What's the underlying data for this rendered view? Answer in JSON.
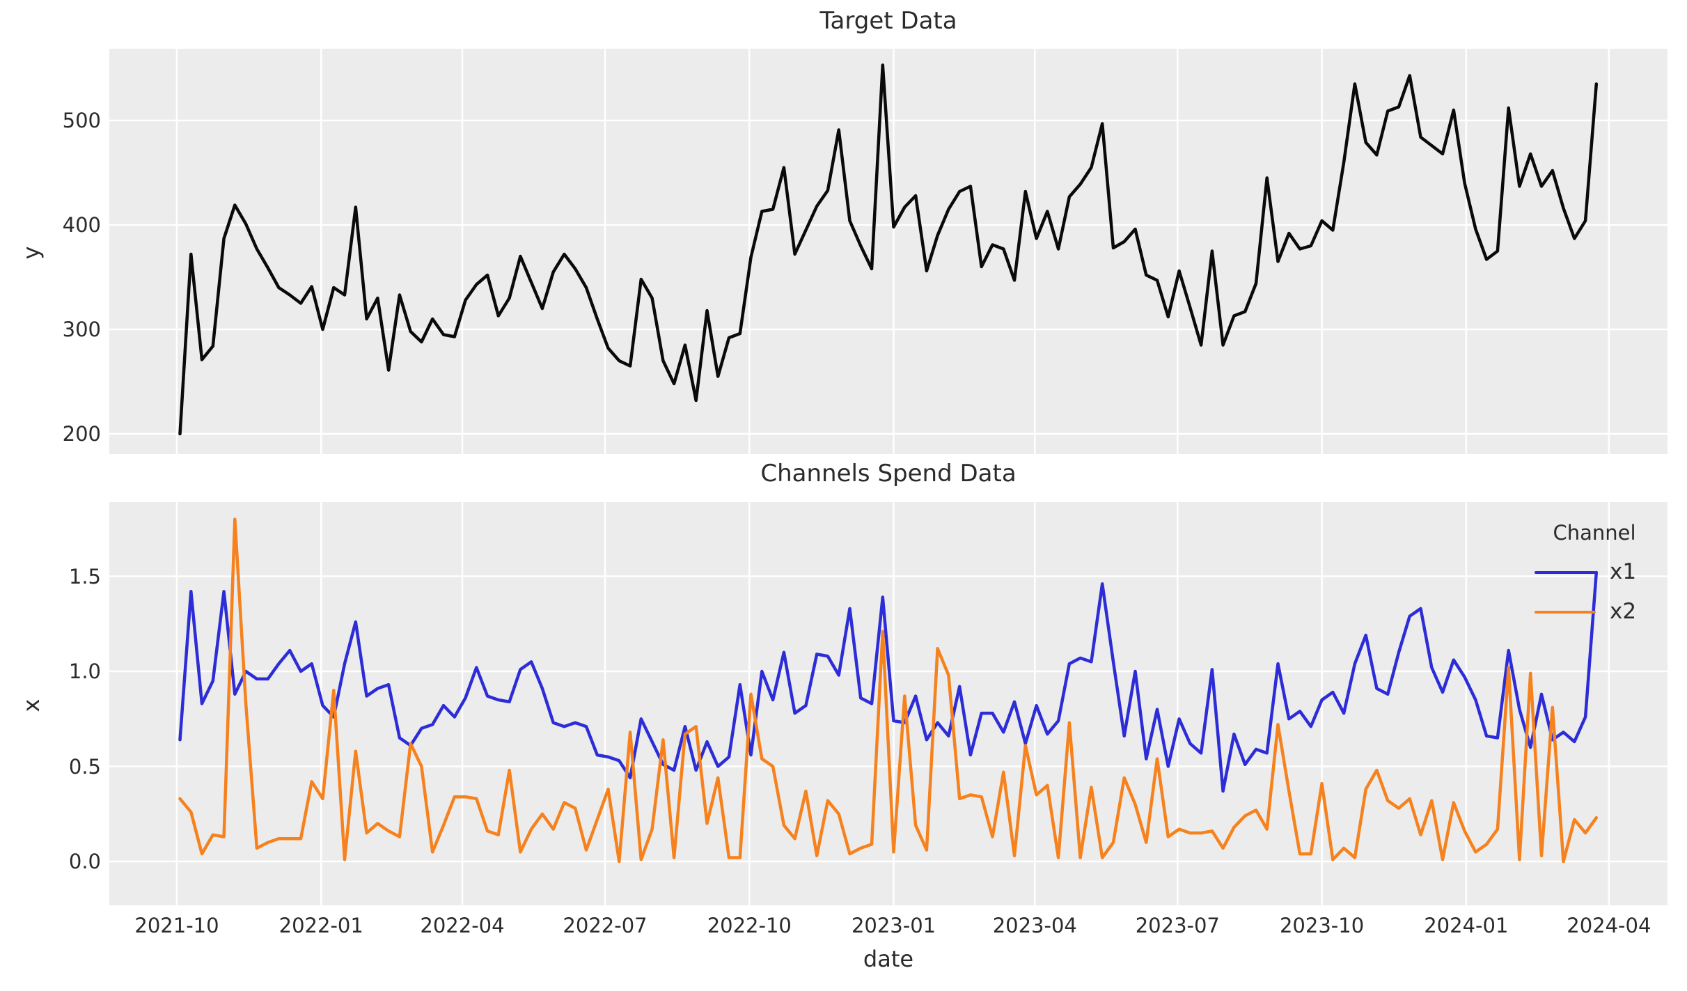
{
  "figure": {
    "background": "#ffffff",
    "plot_background": "#ececec",
    "grid_color": "#ffffff",
    "text_color": "#2b2b2b"
  },
  "top_chart": {
    "title": "Target Data",
    "ylabel": "y",
    "yticks": [
      "200",
      "300",
      "400",
      "500"
    ],
    "line_color": "#0a0a0a"
  },
  "bottom_chart": {
    "title": "Channels Spend Data",
    "ylabel": "x",
    "xlabel": "date",
    "yticks": [
      "0.0",
      "0.5",
      "1.0",
      "1.5"
    ],
    "xticks": [
      "2021-10",
      "2022-01",
      "2022-04",
      "2022-07",
      "2022-10",
      "2023-01",
      "2023-04",
      "2023-07",
      "2023-10",
      "2024-01",
      "2024-04"
    ],
    "legend": {
      "title": "Channel",
      "entries": [
        {
          "label": "x1",
          "color": "#2d2dd7"
        },
        {
          "label": "x2",
          "color": "#f5821e"
        }
      ]
    }
  },
  "chart_data": [
    {
      "type": "line",
      "title": "Target Data",
      "xlabel": "",
      "ylabel": "y",
      "x_start_date": "2021-10-03",
      "x_freq": "weekly",
      "xlim": [
        "2021-10",
        "2024-04"
      ],
      "ylim": [
        181,
        569
      ],
      "grid": true,
      "legend_position": "none",
      "series": [
        {
          "name": "y",
          "color": "#0a0a0a",
          "values": [
            200,
            372,
            271,
            284,
            387,
            419,
            401,
            377,
            359,
            340,
            333,
            325,
            341,
            300,
            340,
            333,
            417,
            310,
            330,
            261,
            333,
            298,
            288,
            310,
            295,
            293,
            328,
            343,
            352,
            313,
            330,
            370,
            345,
            320,
            355,
            372,
            358,
            340,
            310,
            282,
            270,
            265,
            348,
            330,
            270,
            248,
            285,
            232,
            318,
            255,
            292,
            296,
            369,
            413,
            415,
            455,
            372,
            395,
            418,
            433,
            491,
            404,
            380,
            358,
            553,
            398,
            417,
            428,
            356,
            390,
            415,
            432,
            437,
            360,
            381,
            377,
            347,
            432,
            387,
            413,
            377,
            427,
            439,
            455,
            497,
            378,
            384,
            396,
            352,
            347,
            312,
            356,
            321,
            285,
            375,
            285,
            313,
            317,
            344,
            445,
            365,
            392,
            377,
            380,
            404,
            395,
            460,
            535,
            479,
            467,
            509,
            513,
            543,
            484,
            476,
            468,
            510,
            440,
            396,
            367,
            375,
            512,
            437,
            468,
            437,
            452,
            416,
            387,
            404,
            535
          ]
        }
      ]
    },
    {
      "type": "line",
      "title": "Channels Spend Data",
      "xlabel": "date",
      "ylabel": "x",
      "x_start_date": "2021-10-03",
      "x_freq": "weekly",
      "xlim": [
        "2021-10",
        "2024-04"
      ],
      "ylim": [
        -0.23,
        1.89
      ],
      "grid": true,
      "legend_position": "upper right",
      "legend_title": "Channel",
      "series": [
        {
          "name": "x1",
          "color": "#2d2dd7",
          "values": [
            0.64,
            1.42,
            0.83,
            0.95,
            1.42,
            0.88,
            1.0,
            0.96,
            0.96,
            1.04,
            1.11,
            1.0,
            1.04,
            0.82,
            0.76,
            1.04,
            1.26,
            0.87,
            0.91,
            0.93,
            0.65,
            0.61,
            0.7,
            0.72,
            0.82,
            0.76,
            0.86,
            1.02,
            0.87,
            0.85,
            0.84,
            1.01,
            1.05,
            0.91,
            0.73,
            0.71,
            0.73,
            0.71,
            0.56,
            0.55,
            0.53,
            0.44,
            0.75,
            0.63,
            0.51,
            0.48,
            0.71,
            0.48,
            0.63,
            0.5,
            0.55,
            0.93,
            0.56,
            1.0,
            0.85,
            1.1,
            0.78,
            0.82,
            1.09,
            1.08,
            0.98,
            1.33,
            0.86,
            0.83,
            1.39,
            0.74,
            0.73,
            0.87,
            0.64,
            0.73,
            0.66,
            0.92,
            0.56,
            0.78,
            0.78,
            0.68,
            0.84,
            0.62,
            0.82,
            0.67,
            0.74,
            1.04,
            1.07,
            1.05,
            1.46,
            1.05,
            0.66,
            1.0,
            0.54,
            0.8,
            0.5,
            0.75,
            0.62,
            0.57,
            1.01,
            0.37,
            0.67,
            0.51,
            0.59,
            0.57,
            1.04,
            0.75,
            0.79,
            0.71,
            0.85,
            0.89,
            0.78,
            1.04,
            1.19,
            0.91,
            0.88,
            1.1,
            1.29,
            1.33,
            1.02,
            0.89,
            1.06,
            0.97,
            0.85,
            0.66,
            0.65,
            1.11,
            0.8,
            0.6,
            0.88,
            0.64,
            0.68,
            0.63,
            0.76,
            1.52
          ]
        },
        {
          "name": "x2",
          "color": "#f5821e",
          "values": [
            0.33,
            0.26,
            0.04,
            0.14,
            0.13,
            1.8,
            0.83,
            0.07,
            0.1,
            0.12,
            0.12,
            0.12,
            0.42,
            0.33,
            0.9,
            0.01,
            0.58,
            0.15,
            0.2,
            0.16,
            0.13,
            0.62,
            0.5,
            0.05,
            0.19,
            0.34,
            0.34,
            0.33,
            0.16,
            0.14,
            0.48,
            0.05,
            0.17,
            0.25,
            0.17,
            0.31,
            0.28,
            0.06,
            0.22,
            0.38,
            0.0,
            0.68,
            0.01,
            0.17,
            0.64,
            0.02,
            0.67,
            0.71,
            0.2,
            0.44,
            0.02,
            0.02,
            0.88,
            0.54,
            0.5,
            0.19,
            0.12,
            0.37,
            0.03,
            0.32,
            0.25,
            0.04,
            0.07,
            0.09,
            1.21,
            0.05,
            0.87,
            0.19,
            0.06,
            1.12,
            0.98,
            0.33,
            0.35,
            0.34,
            0.13,
            0.47,
            0.03,
            0.61,
            0.35,
            0.4,
            0.02,
            0.73,
            0.02,
            0.39,
            0.02,
            0.1,
            0.44,
            0.3,
            0.1,
            0.54,
            0.13,
            0.17,
            0.15,
            0.15,
            0.16,
            0.07,
            0.18,
            0.24,
            0.27,
            0.17,
            0.72,
            0.37,
            0.04,
            0.04,
            0.41,
            0.01,
            0.07,
            0.02,
            0.38,
            0.48,
            0.32,
            0.28,
            0.33,
            0.14,
            0.32,
            0.01,
            0.31,
            0.16,
            0.05,
            0.09,
            0.17,
            1.02,
            0.01,
            0.99,
            0.03,
            0.81,
            0.0,
            0.22,
            0.15,
            0.23
          ]
        }
      ]
    }
  ]
}
